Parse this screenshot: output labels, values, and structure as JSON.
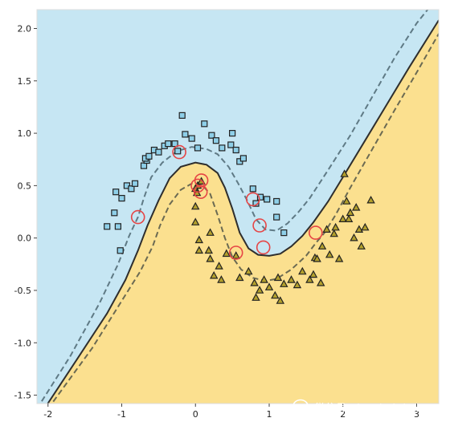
{
  "chart_data": {
    "type": "scatter",
    "title": "",
    "xlabel": "",
    "ylabel": "",
    "xlim": [
      -2.15,
      3.3
    ],
    "ylim": [
      -1.58,
      2.18
    ],
    "xticks": [
      -2,
      -1,
      0,
      1,
      2,
      3
    ],
    "yticks": [
      -1.5,
      -1.0,
      -0.5,
      0.0,
      0.5,
      1.0,
      1.5,
      2.0
    ],
    "grid": false,
    "regions": {
      "upper_color": "#c6e6f3",
      "lower_color": "#fbe08f"
    },
    "series": [
      {
        "marker": "square",
        "color": "#8ecfe8",
        "points": [
          [
            -1.2,
            0.11
          ],
          [
            -1.1,
            0.24
          ],
          [
            -1.05,
            0.11
          ],
          [
            -1.02,
            -0.12
          ],
          [
            -1.0,
            0.38
          ],
          [
            -1.08,
            0.44
          ],
          [
            -0.93,
            0.5
          ],
          [
            -0.87,
            0.47
          ],
          [
            -0.82,
            0.52
          ],
          [
            -0.7,
            0.69
          ],
          [
            -0.66,
            0.74
          ],
          [
            -0.68,
            0.76
          ],
          [
            -0.63,
            0.78
          ],
          [
            -0.56,
            0.84
          ],
          [
            -0.5,
            0.82
          ],
          [
            -0.42,
            0.88
          ],
          [
            -0.37,
            0.9
          ],
          [
            -0.28,
            0.9
          ],
          [
            -0.24,
            0.83
          ],
          [
            -0.18,
            1.17
          ],
          [
            -0.14,
            0.99
          ],
          [
            -0.05,
            0.95
          ],
          [
            0.03,
            0.86
          ],
          [
            0.12,
            1.09
          ],
          [
            0.22,
            0.98
          ],
          [
            0.28,
            0.93
          ],
          [
            0.36,
            0.86
          ],
          [
            0.48,
            0.89
          ],
          [
            0.5,
            1.0
          ],
          [
            0.55,
            0.84
          ],
          [
            0.6,
            0.73
          ],
          [
            0.65,
            0.76
          ],
          [
            0.78,
            0.47
          ],
          [
            0.82,
            0.33
          ],
          [
            0.88,
            0.39
          ],
          [
            0.97,
            0.37
          ],
          [
            1.1,
            0.35
          ],
          [
            1.1,
            0.2
          ],
          [
            1.2,
            0.05
          ]
        ]
      },
      {
        "marker": "triangle",
        "color": "#b3a02c",
        "points": [
          [
            0.03,
            0.5
          ],
          [
            0.08,
            0.54
          ],
          [
            0.0,
            0.47
          ],
          [
            0.02,
            0.43
          ],
          [
            0.0,
            0.3
          ],
          [
            0.0,
            0.15
          ],
          [
            0.05,
            -0.02
          ],
          [
            0.05,
            -0.12
          ],
          [
            0.2,
            0.05
          ],
          [
            0.18,
            -0.12
          ],
          [
            0.2,
            -0.2
          ],
          [
            0.25,
            -0.36
          ],
          [
            0.32,
            -0.27
          ],
          [
            0.35,
            -0.4
          ],
          [
            0.42,
            -0.15
          ],
          [
            0.55,
            -0.17
          ],
          [
            0.6,
            -0.38
          ],
          [
            0.72,
            -0.32
          ],
          [
            0.8,
            -0.43
          ],
          [
            0.82,
            -0.57
          ],
          [
            0.87,
            -0.5
          ],
          [
            0.93,
            -0.4
          ],
          [
            1.0,
            -0.47
          ],
          [
            1.08,
            -0.55
          ],
          [
            1.12,
            -0.38
          ],
          [
            1.15,
            -0.6
          ],
          [
            1.2,
            -0.44
          ],
          [
            1.3,
            -0.4
          ],
          [
            1.38,
            -0.45
          ],
          [
            1.45,
            -0.32
          ],
          [
            1.55,
            -0.4
          ],
          [
            1.6,
            -0.35
          ],
          [
            1.62,
            -0.19
          ],
          [
            1.65,
            -0.2
          ],
          [
            1.7,
            -0.43
          ],
          [
            1.72,
            -0.08
          ],
          [
            1.78,
            0.08
          ],
          [
            1.82,
            -0.16
          ],
          [
            1.88,
            0.04
          ],
          [
            1.9,
            0.1
          ],
          [
            1.95,
            -0.2
          ],
          [
            2.0,
            0.18
          ],
          [
            2.02,
            0.61
          ],
          [
            2.05,
            0.35
          ],
          [
            2.08,
            0.18
          ],
          [
            2.1,
            0.24
          ],
          [
            2.15,
            -0.0
          ],
          [
            2.18,
            0.29
          ],
          [
            2.22,
            0.08
          ],
          [
            2.25,
            -0.08
          ],
          [
            2.3,
            0.1
          ],
          [
            2.38,
            0.36
          ]
        ]
      }
    ],
    "support_vectors": [
      [
        -0.78,
        0.2
      ],
      [
        -0.22,
        0.82
      ],
      [
        0.03,
        0.5
      ],
      [
        0.08,
        0.55
      ],
      [
        0.07,
        0.44
      ],
      [
        0.78,
        0.37
      ],
      [
        0.87,
        0.12
      ],
      [
        0.92,
        -0.09
      ],
      [
        0.55,
        -0.14
      ],
      [
        1.63,
        0.05
      ]
    ],
    "boundaries": {
      "decision": [
        [
          -2.05,
          -1.63
        ],
        [
          -1.6,
          -1.15
        ],
        [
          -1.2,
          -0.72
        ],
        [
          -0.95,
          -0.4
        ],
        [
          -0.78,
          -0.12
        ],
        [
          -0.65,
          0.12
        ],
        [
          -0.5,
          0.36
        ],
        [
          -0.35,
          0.57
        ],
        [
          -0.2,
          0.68
        ],
        [
          0.0,
          0.72
        ],
        [
          0.15,
          0.7
        ],
        [
          0.3,
          0.62
        ],
        [
          0.4,
          0.48
        ],
        [
          0.5,
          0.28
        ],
        [
          0.6,
          0.05
        ],
        [
          0.72,
          -0.1
        ],
        [
          0.85,
          -0.16
        ],
        [
          1.0,
          -0.17
        ],
        [
          1.15,
          -0.15
        ],
        [
          1.3,
          -0.08
        ],
        [
          1.45,
          0.02
        ],
        [
          1.6,
          0.15
        ],
        [
          1.8,
          0.35
        ],
        [
          2.0,
          0.58
        ],
        [
          2.3,
          0.93
        ],
        [
          2.6,
          1.28
        ],
        [
          2.9,
          1.63
        ],
        [
          3.3,
          2.08
        ]
      ],
      "margin_upper": [
        [
          -2.15,
          -1.63
        ],
        [
          -1.7,
          -1.13
        ],
        [
          -1.3,
          -0.62
        ],
        [
          -1.05,
          -0.25
        ],
        [
          -0.9,
          0.02
        ],
        [
          -0.78,
          0.2
        ],
        [
          -0.7,
          0.38
        ],
        [
          -0.6,
          0.58
        ],
        [
          -0.45,
          0.72
        ],
        [
          -0.25,
          0.83
        ],
        [
          -0.05,
          0.87
        ],
        [
          0.15,
          0.85
        ],
        [
          0.3,
          0.8
        ],
        [
          0.45,
          0.68
        ],
        [
          0.58,
          0.52
        ],
        [
          0.7,
          0.36
        ],
        [
          0.82,
          0.18
        ],
        [
          0.95,
          0.08
        ],
        [
          1.1,
          0.07
        ],
        [
          1.25,
          0.14
        ],
        [
          1.4,
          0.25
        ],
        [
          1.55,
          0.38
        ],
        [
          1.8,
          0.65
        ],
        [
          2.1,
          0.98
        ],
        [
          2.4,
          1.35
        ],
        [
          2.7,
          1.72
        ],
        [
          3.0,
          2.05
        ],
        [
          3.15,
          2.18
        ]
      ],
      "margin_lower": [
        [
          -2.0,
          -1.63
        ],
        [
          -1.4,
          -1.05
        ],
        [
          -1.0,
          -0.6
        ],
        [
          -0.75,
          -0.32
        ],
        [
          -0.58,
          -0.08
        ],
        [
          -0.48,
          0.12
        ],
        [
          -0.35,
          0.32
        ],
        [
          -0.2,
          0.46
        ],
        [
          -0.05,
          0.52
        ],
        [
          0.1,
          0.5
        ],
        [
          0.2,
          0.42
        ],
        [
          0.3,
          0.22
        ],
        [
          0.4,
          0.0
        ],
        [
          0.5,
          -0.18
        ],
        [
          0.62,
          -0.3
        ],
        [
          0.78,
          -0.38
        ],
        [
          0.95,
          -0.41
        ],
        [
          1.1,
          -0.39
        ],
        [
          1.3,
          -0.3
        ],
        [
          1.5,
          -0.17
        ],
        [
          1.63,
          -0.05
        ],
        [
          1.75,
          0.05
        ],
        [
          1.9,
          0.22
        ],
        [
          2.1,
          0.48
        ],
        [
          2.4,
          0.85
        ],
        [
          2.7,
          1.22
        ],
        [
          3.0,
          1.58
        ],
        [
          3.3,
          1.95
        ]
      ]
    }
  },
  "watermark": {
    "label": "微信号: deephub-imba",
    "icon": "wechat-icon"
  }
}
